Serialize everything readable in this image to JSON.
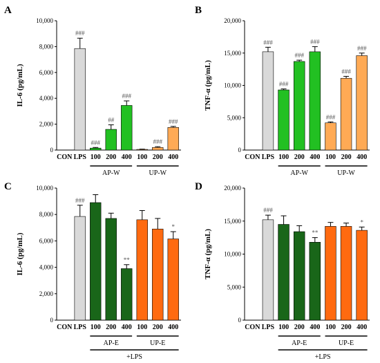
{
  "chart_data": [
    {
      "type": "bar",
      "panel": "A",
      "ylabel": "IL-6 (pg/mL)",
      "ylim": [
        0,
        10000
      ],
      "yticks": [
        "0",
        "2,000",
        "4,000",
        "6,000",
        "8,000",
        "10,000"
      ],
      "categories": [
        "CON",
        "LPS",
        "100",
        "200",
        "400",
        "100",
        "200",
        "400"
      ],
      "values": [
        0,
        7850,
        150,
        1600,
        3450,
        50,
        200,
        1750
      ],
      "errors": [
        0,
        800,
        50,
        350,
        350,
        20,
        60,
        80
      ],
      "labels": [
        "",
        "###",
        "###",
        "##",
        "###",
        "",
        "###",
        "###"
      ],
      "colors": [
        "#d9d9d9",
        "#d9d9d9",
        "#22c022",
        "#22c022",
        "#22c022",
        "#ffaa55",
        "#ffaa55",
        "#ffaa55"
      ],
      "groups": [
        {
          "label": "AP-W",
          "from": 2,
          "to": 4
        },
        {
          "label": "UP-W",
          "from": 5,
          "to": 7
        }
      ],
      "footer": ""
    },
    {
      "type": "bar",
      "panel": "B",
      "ylabel": "TNF-α (pg/mL)",
      "ylim": [
        0,
        20000
      ],
      "yticks": [
        "0",
        "5,000",
        "10,000",
        "15,000",
        "20,000"
      ],
      "categories": [
        "CON",
        "LPS",
        "100",
        "200",
        "400",
        "100",
        "200",
        "400"
      ],
      "values": [
        0,
        15200,
        9300,
        13700,
        15200,
        4200,
        11100,
        14600
      ],
      "errors": [
        0,
        700,
        150,
        200,
        800,
        150,
        300,
        400
      ],
      "labels": [
        "",
        "###",
        "###",
        "###",
        "###",
        "###",
        "###",
        "###"
      ],
      "colors": [
        "#d9d9d9",
        "#d9d9d9",
        "#22c022",
        "#22c022",
        "#22c022",
        "#ffaa55",
        "#ffaa55",
        "#ffaa55"
      ],
      "groups": [
        {
          "label": "AP-W",
          "from": 2,
          "to": 4
        },
        {
          "label": "UP-W",
          "from": 5,
          "to": 7
        }
      ],
      "footer": ""
    },
    {
      "type": "bar",
      "panel": "C",
      "ylabel": "IL-6 (pg/mL)",
      "ylim": [
        0,
        10000
      ],
      "yticks": [
        "0",
        "2,000",
        "4,000",
        "6,000",
        "8,000",
        "10,000"
      ],
      "categories": [
        "CON",
        "LPS",
        "100",
        "200",
        "400",
        "100",
        "200",
        "400"
      ],
      "values": [
        0,
        7850,
        8900,
        7700,
        3900,
        7600,
        6900,
        6150
      ],
      "errors": [
        0,
        850,
        600,
        400,
        300,
        700,
        800,
        550
      ],
      "labels": [
        "",
        "###",
        "",
        "",
        "**",
        "",
        "",
        "*"
      ],
      "colors": [
        "#d9d9d9",
        "#d9d9d9",
        "#196619",
        "#196619",
        "#196619",
        "#ff6a10",
        "#ff6a10",
        "#ff6a10"
      ],
      "groups": [
        {
          "label": "AP-E",
          "from": 2,
          "to": 4
        },
        {
          "label": "UP-E",
          "from": 5,
          "to": 7
        }
      ],
      "footer": "+LPS"
    },
    {
      "type": "bar",
      "panel": "D",
      "ylabel": "TNF-α (pg/mL)",
      "ylim": [
        0,
        20000
      ],
      "yticks": [
        "0",
        "5,000",
        "10,000",
        "15,000",
        "20,000"
      ],
      "categories": [
        "CON",
        "LPS",
        "100",
        "200",
        "400",
        "100",
        "200",
        "400"
      ],
      "values": [
        0,
        15200,
        14500,
        13400,
        11800,
        14200,
        14200,
        13600
      ],
      "errors": [
        0,
        700,
        1300,
        900,
        700,
        600,
        500,
        500
      ],
      "labels": [
        "",
        "###",
        "",
        "",
        "**",
        "",
        "",
        "*"
      ],
      "colors": [
        "#d9d9d9",
        "#d9d9d9",
        "#196619",
        "#196619",
        "#196619",
        "#ff6a10",
        "#ff6a10",
        "#ff6a10"
      ],
      "groups": [
        {
          "label": "AP-E",
          "from": 2,
          "to": 4
        },
        {
          "label": "UP-E",
          "from": 5,
          "to": 7
        }
      ],
      "footer": "+LPS"
    }
  ]
}
